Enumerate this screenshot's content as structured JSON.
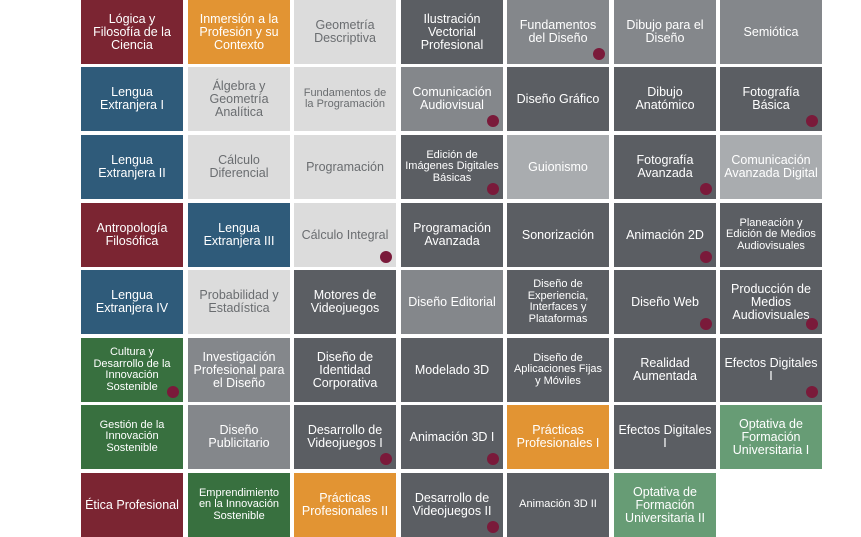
{
  "colors": {
    "maroon": "#7b2532",
    "orange": "#e29433",
    "blue": "#2f5b7a",
    "darkgreen": "#38703f",
    "sage": "#679c75",
    "darkgray": "#5b5e63",
    "midgray": "#84878b",
    "lightgray": "#a9acaf",
    "palegray": "#dcdcdc",
    "dot": "#7a1a3a"
  },
  "columns": [
    [
      {
        "label": "Lógica y Filosofía de la Ciencia",
        "color": "maroon"
      },
      {
        "label": "Lengua Extranjera I",
        "color": "blue"
      },
      {
        "label": "Lengua Extranjera II",
        "color": "blue"
      },
      {
        "label": "Antropología Filosófica",
        "color": "maroon"
      },
      {
        "label": "Lengua Extranjera IV",
        "color": "blue"
      },
      {
        "label": "Cultura y Desarrollo de la Innovación Sostenible",
        "color": "darkgreen",
        "dot": true,
        "small": true
      },
      {
        "label": "Gestión de la Innovación Sostenible",
        "color": "darkgreen",
        "small": true
      },
      {
        "label": "Ética Profesional",
        "color": "maroon"
      }
    ],
    [
      {
        "label": "Inmersión a la Profesión y su Contexto",
        "color": "orange"
      },
      {
        "label": "Álgebra y Geometría Analítica",
        "color": "palegray"
      },
      {
        "label": "Cálculo Diferencial",
        "color": "palegray"
      },
      {
        "label": "Lengua Extranjera III",
        "color": "blue"
      },
      {
        "label": "Probabilidad y Estadística",
        "color": "palegray"
      },
      {
        "label": "Investigación Profesional para el Diseño",
        "color": "midgray"
      },
      {
        "label": "Diseño Publicitario",
        "color": "midgray"
      },
      {
        "label": "Emprendimiento en la Innovación Sostenible",
        "color": "darkgreen",
        "small": true
      }
    ],
    [
      {
        "label": "Geometría Descriptiva",
        "color": "palegray"
      },
      {
        "label": "Fundamentos de la Programación",
        "color": "palegray",
        "small": true
      },
      {
        "label": "Programación",
        "color": "palegray"
      },
      {
        "label": "Cálculo Integral",
        "color": "palegray",
        "dot": true
      },
      {
        "label": "Motores de Videojuegos",
        "color": "darkgray"
      },
      {
        "label": "Diseño de Identidad Corporativa",
        "color": "darkgray"
      },
      {
        "label": "Desarrollo de Videojuegos I",
        "color": "darkgray",
        "dot": true
      },
      {
        "label": "Prácticas Profesionales II",
        "color": "orange"
      }
    ],
    [
      {
        "label": "Ilustración Vectorial Profesional",
        "color": "darkgray"
      },
      {
        "label": "Comunicación Audiovisual",
        "color": "midgray",
        "dot": true
      },
      {
        "label": "Edición de Imágenes Digitales Básicas",
        "color": "darkgray",
        "dot": true,
        "small": true
      },
      {
        "label": "Programación Avanzada",
        "color": "darkgray"
      },
      {
        "label": "Diseño Editorial",
        "color": "midgray"
      },
      {
        "label": "Modelado 3D",
        "color": "darkgray"
      },
      {
        "label": "Animación 3D I",
        "color": "darkgray",
        "dot": true
      },
      {
        "label": "Desarrollo de Videojuegos II",
        "color": "darkgray",
        "dot": true
      }
    ],
    [
      {
        "label": "Fundamentos del Diseño",
        "color": "midgray",
        "dot": true
      },
      {
        "label": "Diseño Gráfico",
        "color": "darkgray"
      },
      {
        "label": "Guionismo",
        "color": "lightgray"
      },
      {
        "label": "Sonorización",
        "color": "darkgray"
      },
      {
        "label": "Diseño de Experiencia, Interfaces y Plataformas",
        "color": "darkgray",
        "small": true
      },
      {
        "label": "Diseño de Aplicaciones Fijas y Móviles",
        "color": "darkgray",
        "small": true
      },
      {
        "label": "Prácticas Profesionales I",
        "color": "orange"
      },
      {
        "label": "Animación 3D II",
        "color": "darkgray",
        "small": true
      }
    ],
    [
      {
        "label": "Dibujo para el Diseño",
        "color": "midgray"
      },
      {
        "label": "Dibujo Anatómico",
        "color": "darkgray"
      },
      {
        "label": "Fotografía Avanzada",
        "color": "darkgray",
        "dot": true
      },
      {
        "label": "Animación 2D",
        "color": "darkgray",
        "dot": true
      },
      {
        "label": "Diseño Web",
        "color": "darkgray",
        "dot": true
      },
      {
        "label": "Realidad Aumentada",
        "color": "darkgray"
      },
      {
        "label": "Efectos Digitales I",
        "color": "darkgray"
      },
      {
        "label": "Optativa de Formación Universitaria II",
        "color": "sage"
      }
    ],
    [
      {
        "label": "Semiótica",
        "color": "midgray"
      },
      {
        "label": "Fotografía Básica",
        "color": "darkgray",
        "dot": true
      },
      {
        "label": "Comunicación Avanzada Digital",
        "color": "lightgray"
      },
      {
        "label": "Planeación y Edición de Medios Audiovisuales",
        "color": "darkgray",
        "small": true
      },
      {
        "label": "Producción de Medios Audiovisuales",
        "color": "darkgray",
        "dot": true
      },
      {
        "label": "Efectos Digitales I",
        "color": "darkgray",
        "dot": true
      },
      {
        "label": "Optativa de Formación Universitaria I",
        "color": "sage"
      }
    ]
  ]
}
